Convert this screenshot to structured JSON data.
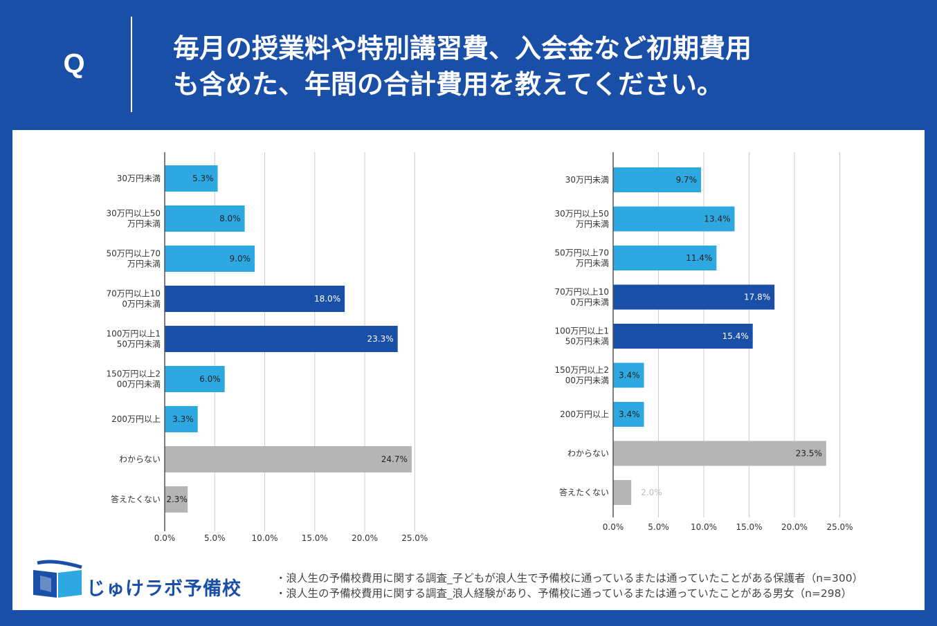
{
  "header": {
    "q_label": "Q",
    "question_line1": "毎月の授業料や特別講習費、入会金など初期費用",
    "question_line2": "も含めた、年間の合計費用を教えてください。"
  },
  "colors": {
    "background": "#1a4fa8",
    "bar_light_blue": "#2ea8e0",
    "bar_dark_blue": "#1a4fa8",
    "bar_gray": "#b5b5b5"
  },
  "chart_data": [
    {
      "type": "bar",
      "orientation": "horizontal",
      "title": "",
      "categories": [
        [
          "30万円未満"
        ],
        [
          "30万円以上50",
          "万円未満"
        ],
        [
          "50万円以上70",
          "万円未満"
        ],
        [
          "70万円以上10",
          "0万円未満"
        ],
        [
          "100万円以上1",
          "50万円未満"
        ],
        [
          "150万円以上2",
          "00万円未満"
        ],
        [
          "200万円以上"
        ],
        [
          "わからない"
        ],
        [
          "答えたくない"
        ]
      ],
      "values": [
        5.3,
        8.0,
        9.0,
        18.0,
        23.3,
        6.0,
        3.3,
        24.7,
        2.3
      ],
      "value_labels": [
        "5.3%",
        "8.0%",
        "9.0%",
        "18.0%",
        "23.3%",
        "6.0%",
        "3.3%",
        "24.7%",
        "2.3%"
      ],
      "bar_colors": [
        "light",
        "light",
        "light",
        "dark",
        "dark",
        "light",
        "light",
        "gray",
        "gray"
      ],
      "xlim": [
        0,
        25
      ],
      "xticks": [
        "0.0%",
        "5.0%",
        "10.0%",
        "15.0%",
        "20.0%",
        "25.0%"
      ],
      "grid": true
    },
    {
      "type": "bar",
      "orientation": "horizontal",
      "title": "",
      "categories": [
        [
          "30万円未満"
        ],
        [
          "30万円以上50",
          "万円未満"
        ],
        [
          "50万円以上70",
          "万円未満"
        ],
        [
          "70万円以上10",
          "0万円未満"
        ],
        [
          "100万円以上1",
          "50万円未満"
        ],
        [
          "150万円以上2",
          "00万円未満"
        ],
        [
          "200万円以上"
        ],
        [
          "わからない"
        ],
        [
          "答えたくない"
        ]
      ],
      "values": [
        9.7,
        13.4,
        11.4,
        17.8,
        15.4,
        3.4,
        3.4,
        23.5,
        2.0
      ],
      "value_labels": [
        "9.7%",
        "13.4%",
        "11.4%",
        "17.8%",
        "15.4%",
        "3.4%",
        "3.4%",
        "23.5%",
        "2.0%"
      ],
      "bar_colors": [
        "light",
        "light",
        "light",
        "dark",
        "dark",
        "light",
        "light",
        "gray",
        "gray"
      ],
      "xlim": [
        0,
        25
      ],
      "xticks": [
        "0.0%",
        "5.0%",
        "10.0%",
        "15.0%",
        "20.0%",
        "25.0%"
      ],
      "grid": true
    }
  ],
  "logo": {
    "text": "じゅけラボ予備校"
  },
  "footnotes": [
    "・浪人生の予備校費用に関する調査_子どもが浪人生で予備校に通っているまたは通っていたことがある保護者（n=300）",
    "・浪人生の予備校費用に関する調査_浪人経験があり、予備校に通っているまたは通っていたことがある男女（n=298）"
  ]
}
